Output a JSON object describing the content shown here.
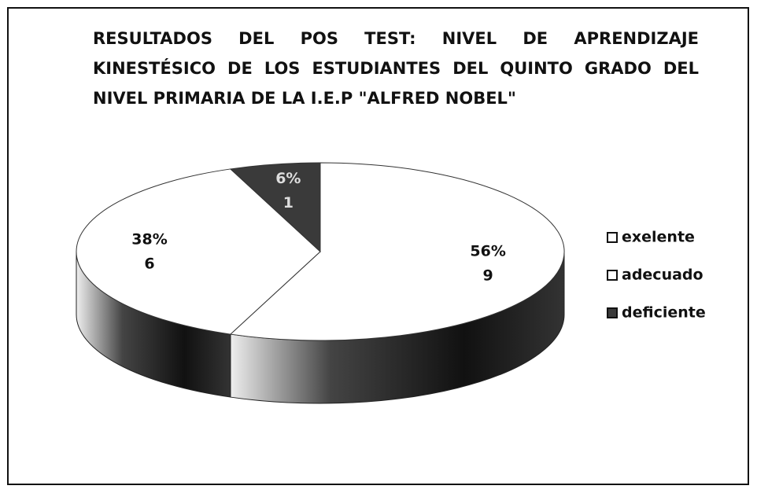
{
  "chart_data": {
    "type": "pie",
    "title": "RESULTADOS DEL POS TEST: NIVEL DE APRENDIZAJE KINESTÉSICO DE LOS ESTUDIANTES DEL QUINTO GRADO DEL NIVEL PRIMARIA DE LA I.E.P \"ALFRED NOBEL\"",
    "categories": [
      "exelente",
      "adecuado",
      "deficiente"
    ],
    "values": [
      56,
      38,
      6
    ],
    "value_labels": [
      "56%",
      "38%",
      "6%"
    ],
    "counts": [
      9,
      6,
      1
    ],
    "colors": [
      "#ffffff",
      "#ffffff",
      "#3a3a3a"
    ],
    "legend": "right"
  }
}
